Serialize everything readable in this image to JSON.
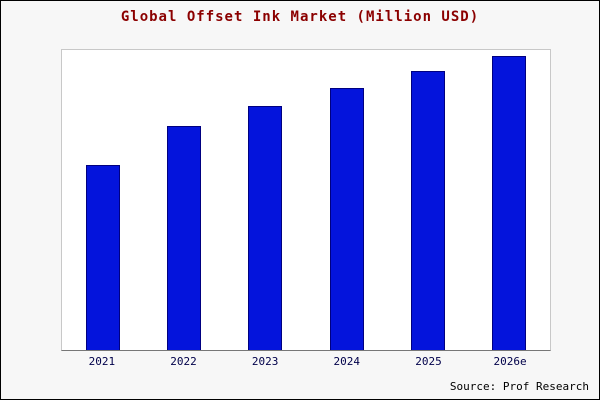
{
  "chart_data": {
    "type": "bar",
    "title": "Global Offset Ink Market (Million USD)",
    "categories": [
      "2021",
      "2022",
      "2023",
      "2024",
      "2025",
      "2026e"
    ],
    "values": [
      63,
      76,
      83,
      89,
      95,
      100
    ],
    "xlabel": "",
    "ylabel": "",
    "ylim": [
      0,
      102
    ],
    "grid": false,
    "legend": "none",
    "bar_color": "#0414dc",
    "bar_border_color": "#000080",
    "title_color": "#8b0000",
    "tick_label_color": "#00004a"
  },
  "source": "Source: Prof Research"
}
